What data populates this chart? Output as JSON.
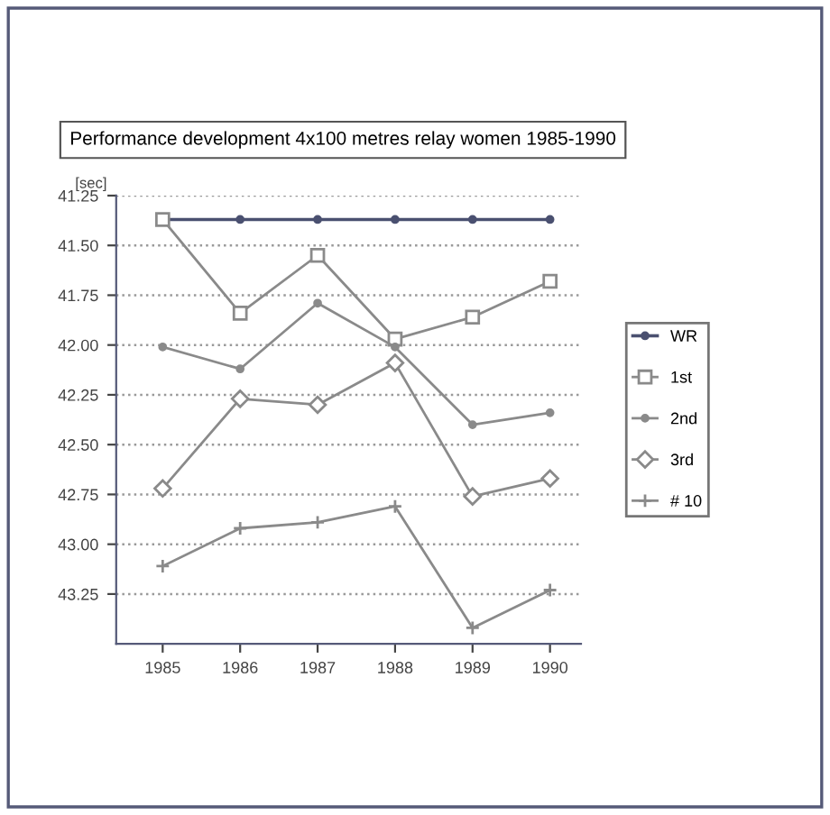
{
  "chart_data": {
    "type": "line",
    "title": "Performance development 4x100 metres relay women 1985-1990",
    "ylabel": "[sec]",
    "categories": [
      "1985",
      "1986",
      "1987",
      "1988",
      "1989",
      "1990"
    ],
    "series": [
      {
        "name": "WR",
        "color": "#4a5070",
        "marker": "circle",
        "values": [
          41.37,
          41.37,
          41.37,
          41.37,
          41.37,
          41.37
        ]
      },
      {
        "name": "1st",
        "color": "#8a8a8a",
        "marker": "square",
        "values": [
          41.37,
          41.84,
          41.55,
          41.97,
          41.86,
          41.68
        ]
      },
      {
        "name": "2nd",
        "color": "#8a8a8a",
        "marker": "circle",
        "values": [
          42.01,
          42.12,
          41.79,
          42.01,
          42.4,
          42.34
        ]
      },
      {
        "name": "3rd",
        "color": "#8a8a8a",
        "marker": "diamond",
        "values": [
          42.72,
          42.27,
          42.3,
          42.09,
          42.76,
          42.67
        ]
      },
      {
        "name": "# 10",
        "color": "#8a8a8a",
        "marker": "cross",
        "values": [
          43.11,
          42.92,
          42.89,
          42.81,
          43.42,
          43.23
        ]
      }
    ],
    "ylim": [
      43.5,
      41.25
    ],
    "yticks": [
      {
        "value": 41.25,
        "label": "41.25"
      },
      {
        "value": 41.5,
        "label": "41.50"
      },
      {
        "value": 41.75,
        "label": "41.75"
      },
      {
        "value": 42,
        "label": "42.00"
      },
      {
        "value": 42.25,
        "label": "42.25"
      },
      {
        "value": 42.5,
        "label": "42.50"
      },
      {
        "value": 42.75,
        "label": "42.75"
      },
      {
        "value": 43,
        "label": "43.00"
      },
      {
        "value": 43.25,
        "label": "43.25"
      }
    ],
    "grid": "y",
    "legend": "right",
    "line_style": "solid"
  }
}
